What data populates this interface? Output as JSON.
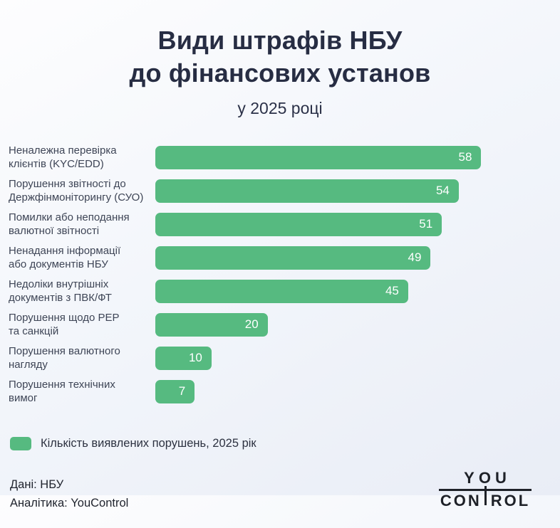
{
  "header": {
    "title_line1": "Види штрафів НБУ",
    "title_line2": "до фінансових установ",
    "subtitle": "у 2025 році"
  },
  "chart_data": {
    "type": "bar",
    "orientation": "horizontal",
    "title": "Види штрафів НБУ до фінансових установ",
    "subtitle": "у 2025 році",
    "categories": [
      "Неналежна перевірка клієнтів (KYC/EDD)",
      "Порушення звітності до Держфінмоніторингу (СУО)",
      "Помилки або неподання валютної звітності",
      "Ненадання інформації або документів НБУ",
      "Недоліки внутрішніх документів з ПВК/ФТ",
      "Порушення щодо PEP та санкцій",
      "Порушення валютного нагляду",
      "Порушення технічних вимог"
    ],
    "category_lines": [
      [
        "Неналежна перевірка",
        "клієнтів (KYC/EDD)"
      ],
      [
        "Порушення звітності до",
        "Держфінмоніторингу (СУО)"
      ],
      [
        "Помилки або неподання",
        "валютної звітності"
      ],
      [
        "Ненадання інформації",
        "або документів НБУ"
      ],
      [
        "Недоліки внутрішніх",
        "документів з ПВК/ФТ"
      ],
      [
        "Порушення щодо PEP",
        "та санкцій"
      ],
      [
        "Порушення валютного",
        "нагляду"
      ],
      [
        "Порушення технічних",
        "вимог"
      ]
    ],
    "values": [
      58,
      54,
      51,
      49,
      45,
      20,
      10,
      7
    ],
    "xlim": [
      0,
      70.5
    ],
    "grid": false,
    "legend_position": "bottom-left",
    "bar_color": "#56ba80",
    "value_label_color": "#ffffff"
  },
  "legend": {
    "label": "Кількість виявлених порушень, 2025 рік"
  },
  "footer": {
    "source": "Дані: НБУ",
    "analytics": "Аналітика: YouControl",
    "logo_text": "YOUCONTROL",
    "logo_top": "YOU",
    "logo_bottom_left": "CON",
    "logo_bottom_right": "ROL"
  },
  "colors": {
    "title": "#272d43",
    "label_text": "#3e4556",
    "footer_text": "#20242e",
    "logo": "#1e2128",
    "background_edge": "#e9edf6",
    "background_center": "#fdfdfe"
  }
}
